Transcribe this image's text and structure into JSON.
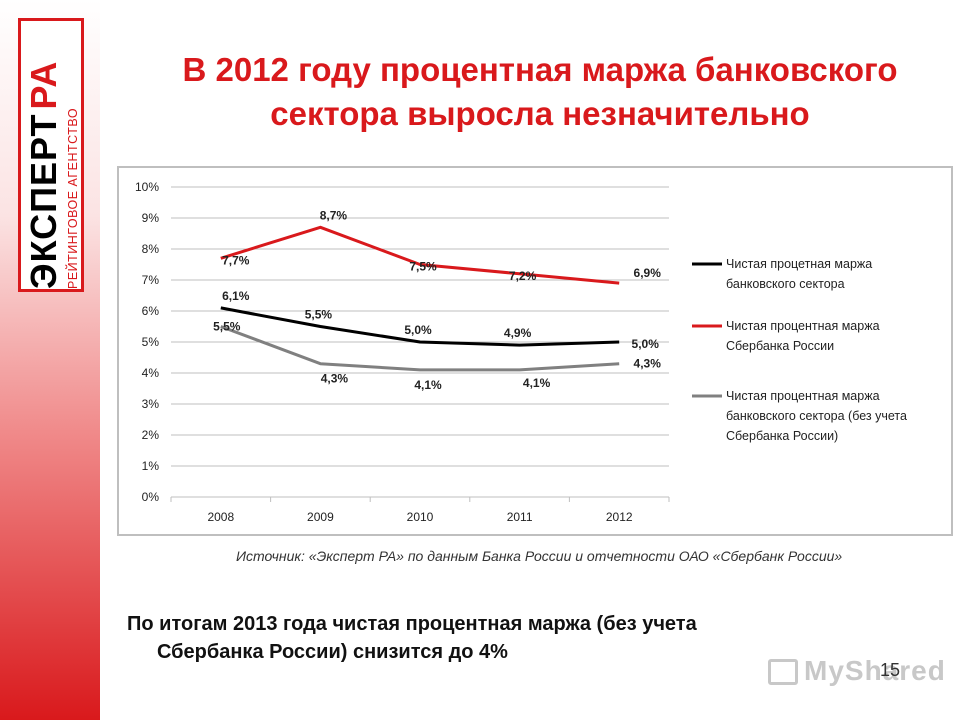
{
  "logo": {
    "main_black": "ЭКСПЕРТ",
    "main_red": "РА",
    "subtitle": "РЕЙТИНГОВОЕ АГЕНТСТВО"
  },
  "title_line1": "В 2012 году процентная маржа банковского",
  "title_line2": "сектора выросла незначительно",
  "source": "Источник: «Эксперт РА» по данным Банка России и отчетности ОАО «Сбербанк России»",
  "conclusion_line1": "По итогам 2013 года чистая процентная маржа (без учета",
  "conclusion_line2": "Сбербанка России) снизится до 4%",
  "watermark": "MyShared",
  "page_number": "15",
  "colors": {
    "accent": "#d9191c",
    "black_series": "#000000",
    "gray_series": "#808080",
    "grid": "#bfbfbf"
  },
  "chart_data": {
    "type": "line",
    "categories": [
      "2008",
      "2009",
      "2010",
      "2011",
      "2012"
    ],
    "yticks": [
      "0%",
      "1%",
      "2%",
      "3%",
      "4%",
      "5%",
      "6%",
      "7%",
      "8%",
      "9%",
      "10%"
    ],
    "ylim": [
      0,
      10
    ],
    "grid": true,
    "legend_position": "right",
    "series": [
      {
        "name": "Чистая процентная маржа банковского сектора",
        "legend_lines": [
          "Чистая процетная маржа",
          "банковского сектора"
        ],
        "color": "#000000",
        "values": [
          6.1,
          5.5,
          5.0,
          4.9,
          5.0
        ],
        "labels": [
          "6,1%",
          "5,5%",
          "5,0%",
          "4,9%",
          "5,0%"
        ]
      },
      {
        "name": "Чистая процентная маржа Сбербанка России",
        "legend_lines": [
          "Чистая процентная маржа",
          "Сбербанка России"
        ],
        "color": "#d9191c",
        "values": [
          7.7,
          8.7,
          7.5,
          7.2,
          6.9
        ],
        "labels": [
          "7,7%",
          "8,7%",
          "7,5%",
          "7,2%",
          "6,9%"
        ]
      },
      {
        "name": "Чистая процентная маржа банковского сектора (без учета Сбербанка России)",
        "legend_lines": [
          "Чистая процентная маржа",
          "банковского сектора (без учета",
          "Сбербанка России)"
        ],
        "color": "#808080",
        "values": [
          5.5,
          4.3,
          4.1,
          4.1,
          4.3
        ],
        "labels": [
          "5,5%",
          "4,3%",
          "4,1%",
          "4,1%",
          "4,3%"
        ]
      }
    ]
  }
}
